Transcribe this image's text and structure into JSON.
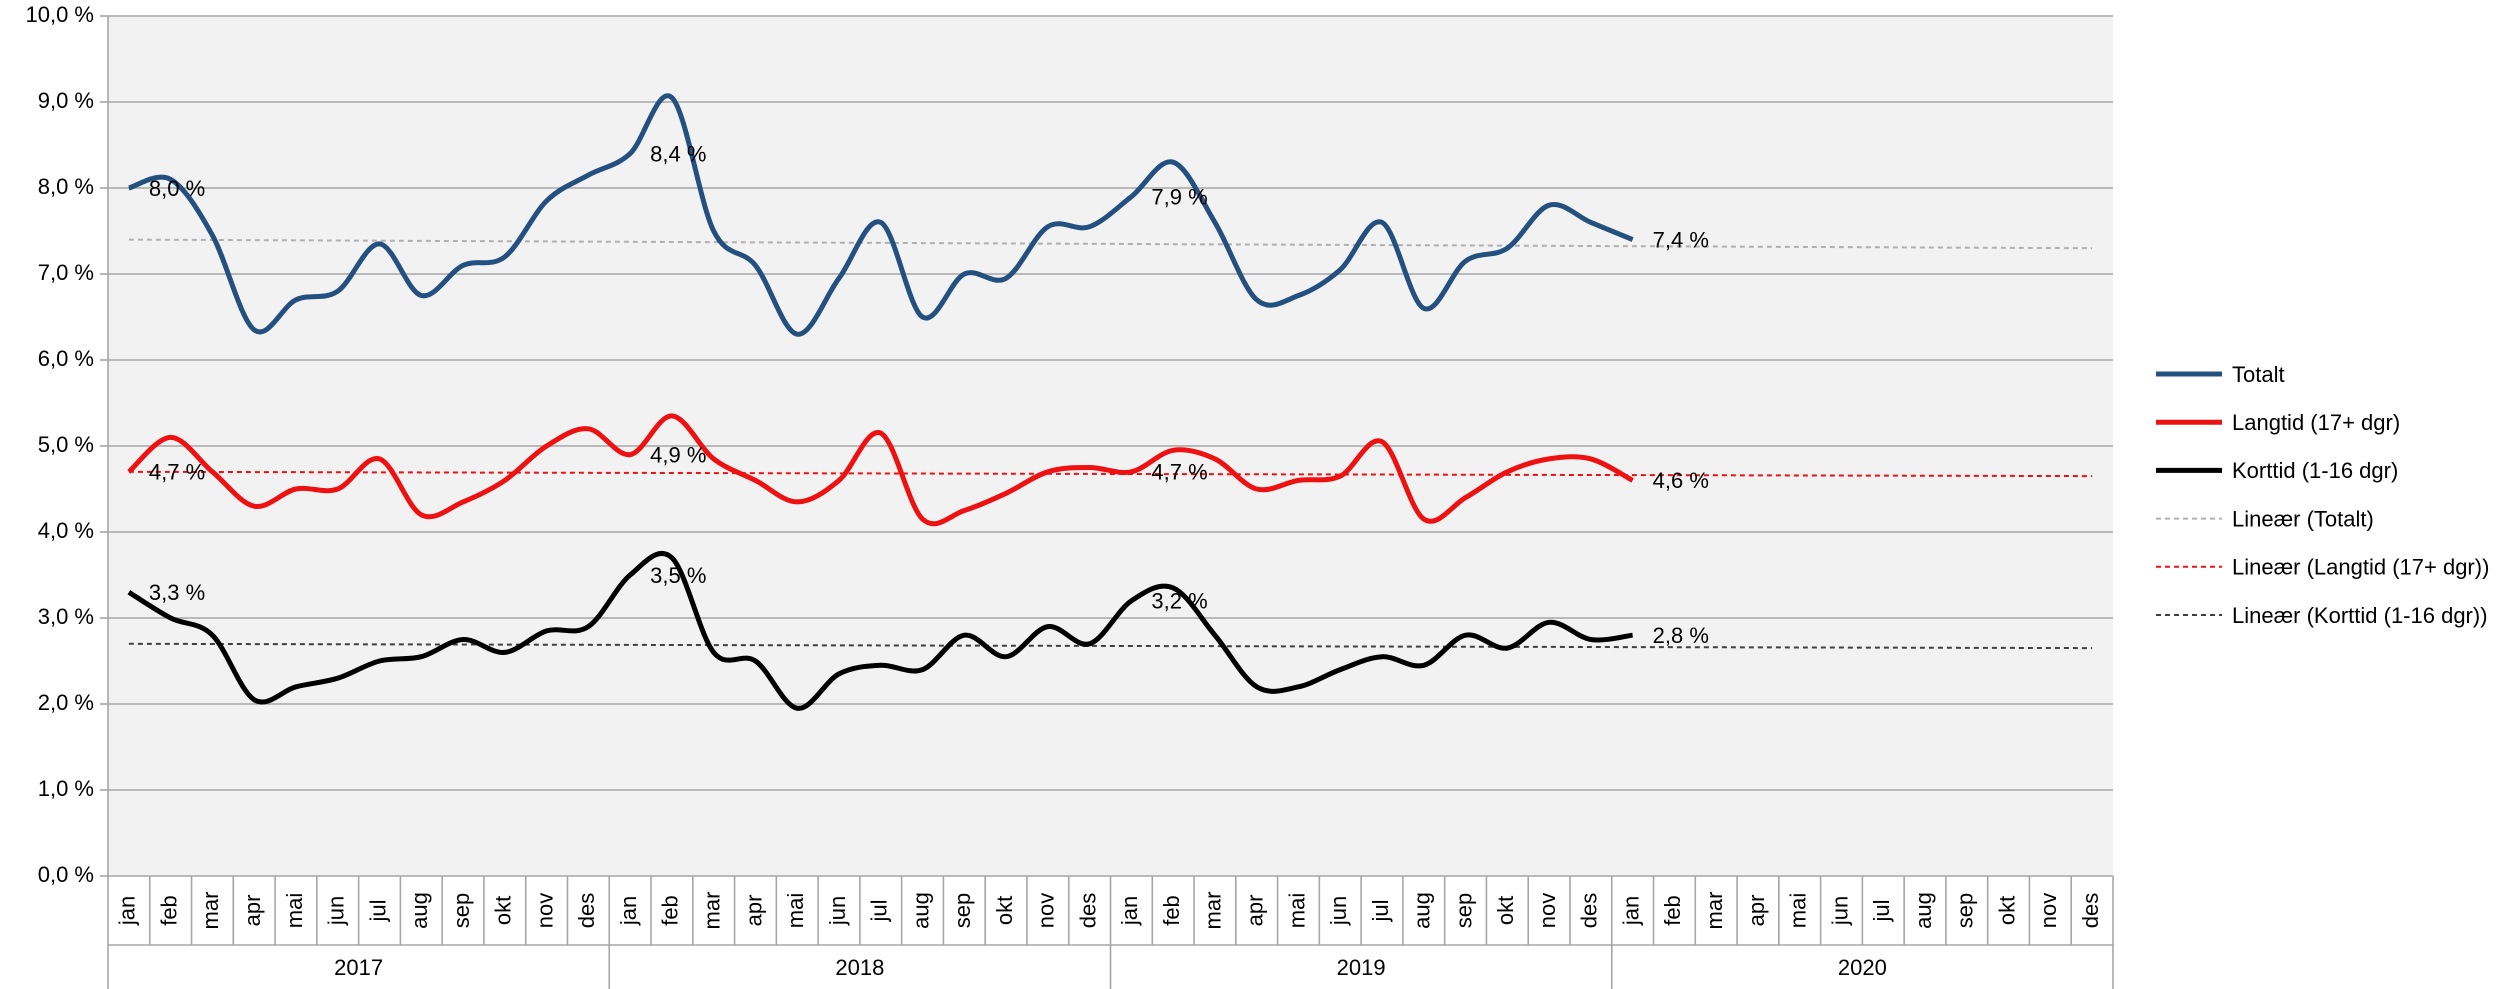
{
  "chart_data": {
    "type": "line",
    "categories": [
      "jan",
      "feb",
      "mar",
      "apr",
      "mai",
      "jun",
      "jul",
      "aug",
      "sep",
      "okt",
      "nov",
      "des",
      "jan",
      "feb",
      "mar",
      "apr",
      "mai",
      "jun",
      "jul",
      "aug",
      "sep",
      "okt",
      "nov",
      "des",
      "jan",
      "feb",
      "mar",
      "apr",
      "mai",
      "jun",
      "jul",
      "aug",
      "sep",
      "okt",
      "nov",
      "des",
      "jan",
      "feb",
      "mar",
      "apr",
      "mai",
      "jun",
      "jul",
      "aug",
      "sep",
      "okt",
      "nov",
      "des"
    ],
    "years": [
      "2017",
      "2018",
      "2019",
      "2020"
    ],
    "series": [
      {
        "name": "Totalt",
        "color": "#24507f",
        "values": [
          8.0,
          8.1,
          7.45,
          6.35,
          6.7,
          6.8,
          7.35,
          6.75,
          7.1,
          7.2,
          7.85,
          8.15,
          8.4,
          9.05,
          7.5,
          7.1,
          6.3,
          6.95,
          7.6,
          6.5,
          7.0,
          6.95,
          7.55,
          7.55,
          7.9,
          8.3,
          7.6,
          6.7,
          6.75,
          7.05,
          7.6,
          6.6,
          7.15,
          7.3,
          7.8,
          7.6,
          7.4,
          null,
          null,
          null,
          null,
          null,
          null,
          null,
          null,
          null,
          null,
          null
        ],
        "value_labels": [
          "8,0 %",
          null,
          null,
          null,
          null,
          null,
          null,
          null,
          null,
          null,
          null,
          null,
          "8,4 %",
          null,
          null,
          null,
          null,
          null,
          null,
          null,
          null,
          null,
          null,
          null,
          "7,9 %",
          null,
          null,
          null,
          null,
          null,
          null,
          null,
          null,
          null,
          null,
          null,
          "7,4 %",
          null,
          null,
          null,
          null,
          null,
          null,
          null,
          null,
          null,
          null,
          null
        ]
      },
      {
        "name": "Langtid (17+ dgr)",
        "color": "#ee1111",
        "values": [
          4.7,
          5.1,
          4.7,
          4.3,
          4.5,
          4.5,
          4.85,
          4.2,
          4.35,
          4.6,
          5.0,
          5.2,
          4.9,
          5.35,
          4.85,
          4.6,
          4.35,
          4.6,
          5.15,
          4.15,
          4.25,
          4.45,
          4.7,
          4.75,
          4.7,
          4.95,
          4.85,
          4.5,
          4.6,
          4.65,
          5.05,
          4.15,
          4.4,
          4.7,
          4.85,
          4.85,
          4.6,
          null,
          null,
          null,
          null,
          null,
          null,
          null,
          null,
          null,
          null,
          null
        ],
        "value_labels": [
          "4,7 %",
          null,
          null,
          null,
          null,
          null,
          null,
          null,
          null,
          null,
          null,
          null,
          "4,9 %",
          null,
          null,
          null,
          null,
          null,
          null,
          null,
          null,
          null,
          null,
          null,
          "4,7 %",
          null,
          null,
          null,
          null,
          null,
          null,
          null,
          null,
          null,
          null,
          null,
          "4,6 %",
          null,
          null,
          null,
          null,
          null,
          null,
          null,
          null,
          null,
          null,
          null
        ]
      },
      {
        "name": "Korttid (1-16 dgr)",
        "color": "#000000",
        "values": [
          3.3,
          3.0,
          2.8,
          2.05,
          2.2,
          2.3,
          2.5,
          2.55,
          2.75,
          2.6,
          2.85,
          2.9,
          3.5,
          3.7,
          2.6,
          2.5,
          1.95,
          2.35,
          2.45,
          2.4,
          2.8,
          2.55,
          2.9,
          2.7,
          3.2,
          3.35,
          2.8,
          2.2,
          2.2,
          2.4,
          2.55,
          2.45,
          2.8,
          2.65,
          2.95,
          2.75,
          2.8,
          null,
          null,
          null,
          null,
          null,
          null,
          null,
          null,
          null,
          null,
          null
        ],
        "value_labels": [
          "3,3 %",
          null,
          null,
          null,
          null,
          null,
          null,
          null,
          null,
          null,
          null,
          null,
          "3,5 %",
          null,
          null,
          null,
          null,
          null,
          null,
          null,
          null,
          null,
          null,
          null,
          "3,2 %",
          null,
          null,
          null,
          null,
          null,
          null,
          null,
          null,
          null,
          null,
          null,
          "2,8 %",
          null,
          null,
          null,
          null,
          null,
          null,
          null,
          null,
          null,
          null,
          null
        ]
      }
    ],
    "trendlines": [
      {
        "name": "Lineær (Totalt)",
        "color": "#b0b0b0",
        "values": [
          7.4,
          7.3
        ]
      },
      {
        "name": "Lineær (Langtid (17+ dgr))",
        "color": "#ee1111",
        "values": [
          4.7,
          4.65
        ]
      },
      {
        "name": "Lineær (Korttid (1-16 dgr))",
        "color": "#404040",
        "values": [
          2.7,
          2.65
        ]
      }
    ],
    "ylim": [
      0,
      10
    ],
    "yticks": [
      {
        "value": 0,
        "label": "0,0 %"
      },
      {
        "value": 1,
        "label": "1,0 %"
      },
      {
        "value": 2,
        "label": "2,0 %"
      },
      {
        "value": 3,
        "label": "3,0 %"
      },
      {
        "value": 4,
        "label": "4,0 %"
      },
      {
        "value": 5,
        "label": "5,0 %"
      },
      {
        "value": 6,
        "label": "6,0 %"
      },
      {
        "value": 7,
        "label": "7,0 %"
      },
      {
        "value": 8,
        "label": "8,0 %"
      },
      {
        "value": 9,
        "label": "9,0 %"
      },
      {
        "value": 10,
        "label": "10,0 %"
      }
    ],
    "grid": true,
    "legend": "right"
  }
}
